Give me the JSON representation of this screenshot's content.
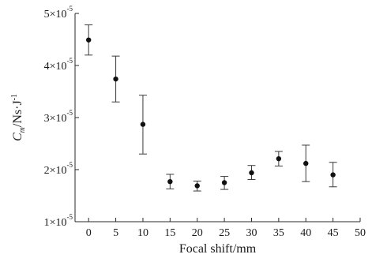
{
  "chart_data": {
    "type": "scatter",
    "title": "",
    "xlabel": "Focal shift/mm",
    "ylabel_main": "C",
    "ylabel_sub": "m",
    "ylabel_unit": "/Ns·J",
    "ylabel_unit_sup": "-1",
    "xlim": [
      -2.5,
      50
    ],
    "ylim": [
      1e-05,
      5e-05
    ],
    "x_ticks": [
      0,
      5,
      10,
      15,
      20,
      25,
      30,
      35,
      40,
      45,
      50
    ],
    "y_ticks": [
      {
        "value": 1e-05,
        "mantissa": "1×10",
        "exp": "-5"
      },
      {
        "value": 2e-05,
        "mantissa": "2×10",
        "exp": "-5"
      },
      {
        "value": 3e-05,
        "mantissa": "3×10",
        "exp": "-5"
      },
      {
        "value": 4e-05,
        "mantissa": "4×10",
        "exp": "-5"
      },
      {
        "value": 5e-05,
        "mantissa": "5×10",
        "exp": "-5"
      }
    ],
    "grid": false,
    "points": [
      {
        "x": 0,
        "y": 4.49e-05,
        "lo": 4.2e-05,
        "hi": 4.78e-05
      },
      {
        "x": 5,
        "y": 3.74e-05,
        "lo": 3.3e-05,
        "hi": 4.18e-05
      },
      {
        "x": 10,
        "y": 2.87e-05,
        "lo": 2.3e-05,
        "hi": 3.43e-05
      },
      {
        "x": 15,
        "y": 1.77e-05,
        "lo": 1.63e-05,
        "hi": 1.91e-05
      },
      {
        "x": 20,
        "y": 1.69e-05,
        "lo": 1.59e-05,
        "hi": 1.78e-05
      },
      {
        "x": 25,
        "y": 1.75e-05,
        "lo": 1.62e-05,
        "hi": 1.87e-05
      },
      {
        "x": 30,
        "y": 1.94e-05,
        "lo": 1.81e-05,
        "hi": 2.08e-05
      },
      {
        "x": 35,
        "y": 2.21e-05,
        "lo": 2.07e-05,
        "hi": 2.35e-05
      },
      {
        "x": 40,
        "y": 2.12e-05,
        "lo": 1.77e-05,
        "hi": 2.47e-05
      },
      {
        "x": 45,
        "y": 1.9e-05,
        "lo": 1.67e-05,
        "hi": 2.14e-05
      }
    ]
  }
}
